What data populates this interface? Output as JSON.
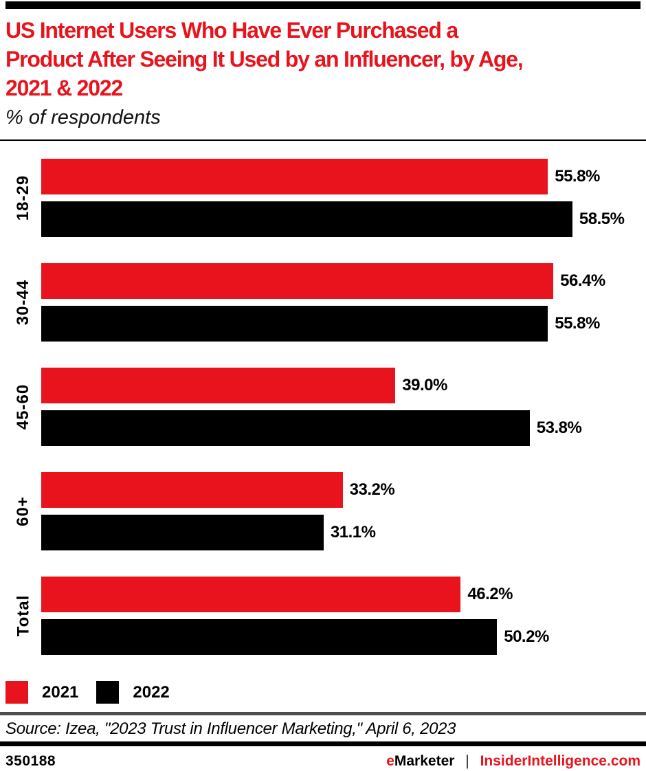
{
  "header": {
    "title_lines": [
      "US Internet Users Who Have Ever Purchased a",
      "Product After Seeing It Used by an Influencer, by Age,",
      "2021 & 2022"
    ],
    "subtitle": "% of respondents",
    "title_color": "#e8131c"
  },
  "chart_data": {
    "type": "bar",
    "orientation": "horizontal",
    "title": "US Internet Users Who Have Ever Purchased a Product After Seeing It Used by an Influencer, by Age, 2021 & 2022",
    "subtitle": "% of respondents",
    "categories": [
      "18-29",
      "30-44",
      "45-60",
      "60+",
      "Total"
    ],
    "series": [
      {
        "name": "2021",
        "color": "#e8131c",
        "values": [
          55.8,
          56.4,
          39.0,
          33.2,
          46.2
        ],
        "labels": [
          "55.8%",
          "56.4%",
          "39.0%",
          "33.2%",
          "46.2%"
        ]
      },
      {
        "name": "2022",
        "color": "#000000",
        "values": [
          58.5,
          55.8,
          53.8,
          31.1,
          50.2
        ],
        "labels": [
          "58.5%",
          "55.8%",
          "53.8%",
          "31.1%",
          "50.2%"
        ]
      }
    ],
    "value_suffix": "%",
    "xlim": [
      0,
      66
    ],
    "grid": false,
    "axis_ticks_shown": false,
    "data_labels": true,
    "legend_position": "bottom"
  },
  "legend": {
    "items": [
      {
        "label": "2021",
        "color": "#e8131c"
      },
      {
        "label": "2022",
        "color": "#000000"
      }
    ]
  },
  "source_line": "Source: Izea, \"2023 Trust in Influencer Marketing,\" April 6, 2023",
  "footer": {
    "chart_id": "350188",
    "brand_e": "e",
    "brand_marketer": "Marketer",
    "brand_separator": "|",
    "brand_site": "InsiderIntelligence.com"
  },
  "colors": {
    "accent_red": "#e8131c",
    "bar_black": "#000000",
    "divider_gray": "#4d4d4d"
  }
}
